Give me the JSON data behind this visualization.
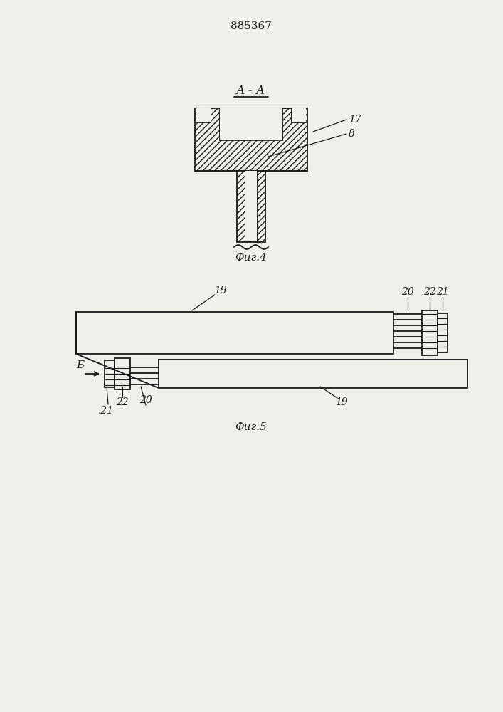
{
  "title": "885367",
  "fig4_label": "А - А",
  "fig4_caption": "Фиг.4",
  "fig5_caption": "Фиг.5",
  "label_17": "17",
  "label_8": "8",
  "label_19_top": "19",
  "label_19_bot": "19",
  "label_20_top": "20",
  "label_20_bot": "20",
  "label_21_top": "21",
  "label_21_bot": ".21",
  "label_22_top": "22",
  "label_22_bot": "22",
  "label_B": "Б",
  "bg_color": "#f0f0eb",
  "line_color": "#1a1a1a"
}
